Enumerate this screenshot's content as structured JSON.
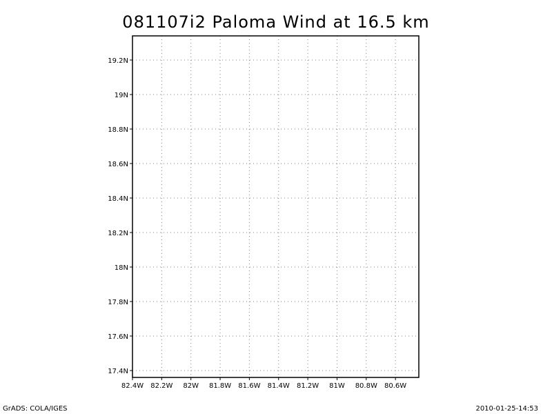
{
  "title": "081107i2 Paloma Wind at 16.5 km",
  "map": {
    "lon_min": -82.4,
    "lon_max": -80.44,
    "lat_min": 17.36,
    "lat_max": 19.34,
    "grid": true,
    "x_ticks": [
      {
        "value": -82.4,
        "label": "82.4W"
      },
      {
        "value": -82.2,
        "label": "82.2W"
      },
      {
        "value": -82.0,
        "label": "82W"
      },
      {
        "value": -81.8,
        "label": "81.8W"
      },
      {
        "value": -81.6,
        "label": "81.6W"
      },
      {
        "value": -81.4,
        "label": "81.4W"
      },
      {
        "value": -81.2,
        "label": "81.2W"
      },
      {
        "value": -81.0,
        "label": "81W"
      },
      {
        "value": -80.8,
        "label": "80.8W"
      },
      {
        "value": -80.6,
        "label": "80.6W"
      }
    ],
    "y_ticks": [
      {
        "value": 19.2,
        "label": "19.2N"
      },
      {
        "value": 19.0,
        "label": "19N"
      },
      {
        "value": 18.8,
        "label": "18.8N"
      },
      {
        "value": 18.6,
        "label": "18.6N"
      },
      {
        "value": 18.4,
        "label": "18.4N"
      },
      {
        "value": 18.2,
        "label": "18.2N"
      },
      {
        "value": 18.0,
        "label": "18N"
      },
      {
        "value": 17.8,
        "label": "17.8N"
      },
      {
        "value": 17.6,
        "label": "17.6N"
      },
      {
        "value": 17.4,
        "label": "17.4N"
      }
    ],
    "colors": {
      "frame": "#000000",
      "grid": "#808080",
      "background": "#ffffff"
    }
  },
  "footer": {
    "left": "GrADS: COLA/IGES",
    "right": "2010-01-25-14:53"
  }
}
